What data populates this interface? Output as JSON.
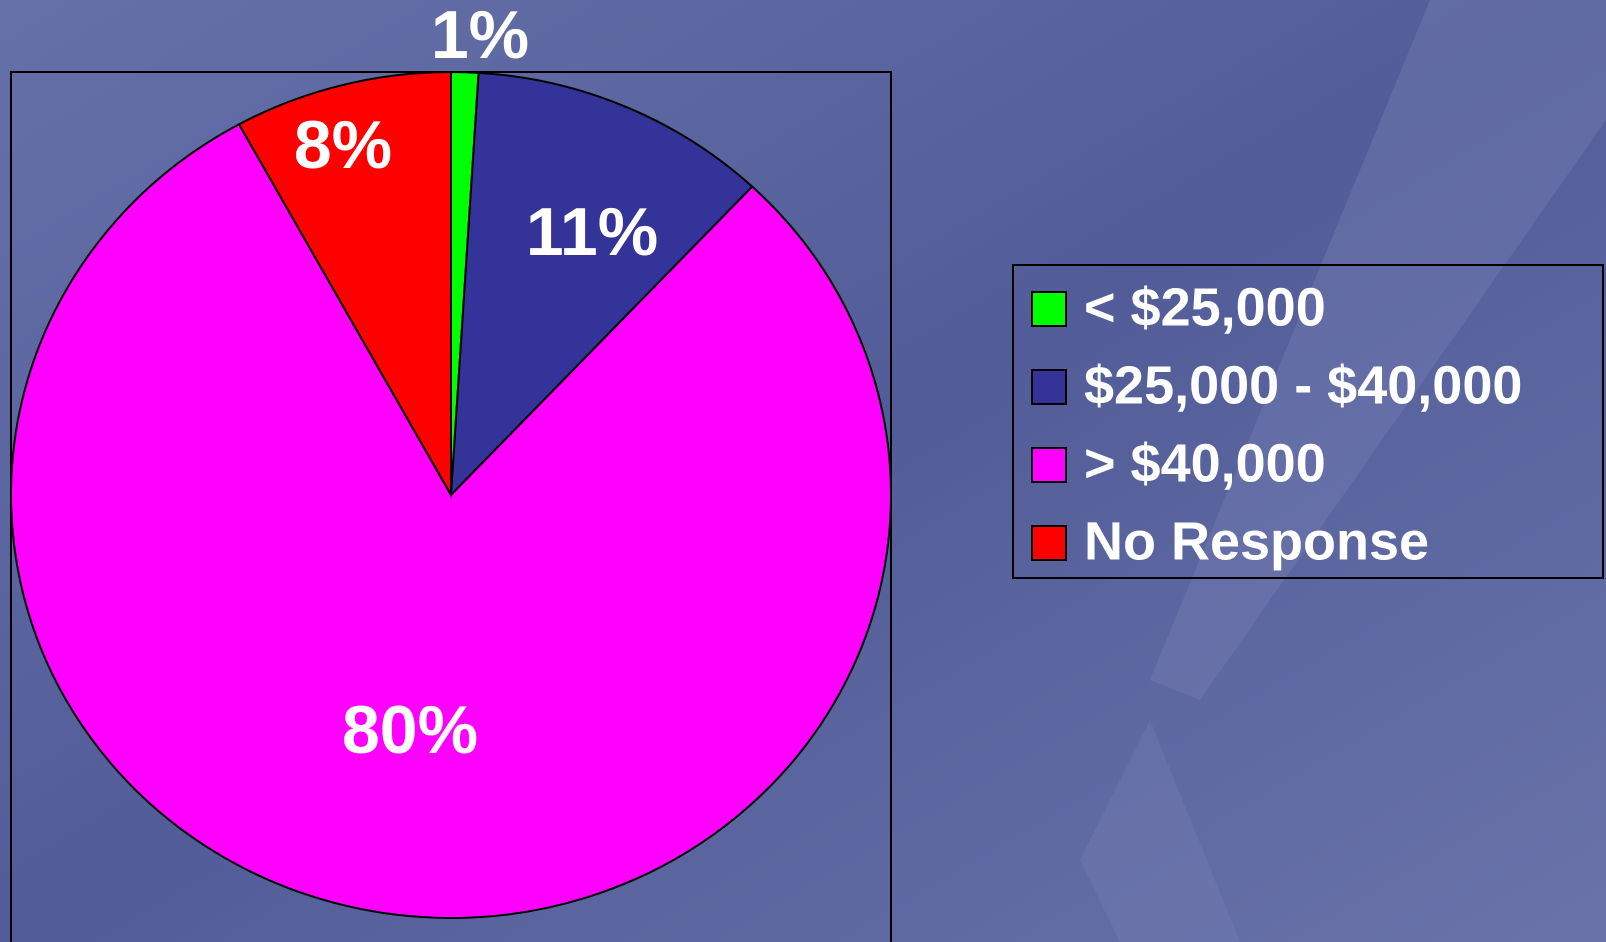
{
  "chart_data": {
    "type": "pie",
    "categories": [
      "< $25,000",
      "$25,000 - $40,000",
      "> $40,000",
      "No Response"
    ],
    "values": [
      1,
      11,
      80,
      8
    ],
    "value_labels": [
      "1%",
      "11%",
      "80%",
      "8%"
    ],
    "colors": [
      "#00ff00",
      "#333399",
      "#ff00ff",
      "#ff0000"
    ],
    "legend": "right"
  }
}
